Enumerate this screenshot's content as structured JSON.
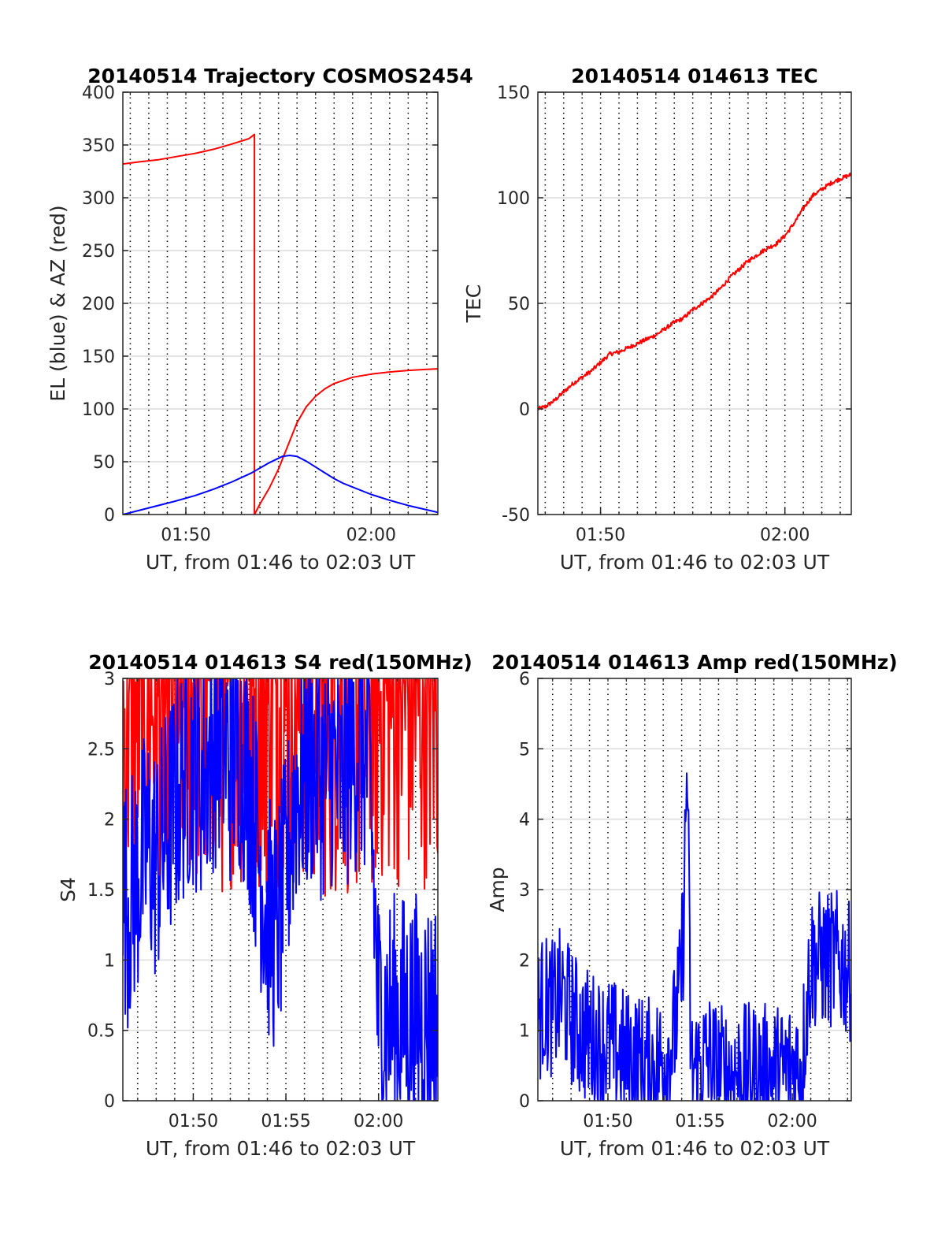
{
  "chart_data": [
    {
      "type": "line",
      "title": "20140514 Trajectory COSMOS2454",
      "xlabel": "UT, from 01:46 to 02:03 UT",
      "ylabel": "EL (blue) & AZ (red)",
      "x_unit": "minutes after 01:46 UT",
      "xlim": [
        0.6,
        17.6
      ],
      "ylim": [
        0,
        400
      ],
      "x_ticks": [
        4,
        14
      ],
      "x_tick_labels": [
        "01:50",
        "02:00"
      ],
      "y_ticks": [
        0,
        50,
        100,
        150,
        200,
        250,
        300,
        350,
        400
      ],
      "y_tick_labels": [
        "0",
        "50",
        "100",
        "150",
        "200",
        "250",
        "300",
        "350",
        "400"
      ],
      "grid": true,
      "series": [
        {
          "color": "#ff0000",
          "x": [
            0.6,
            1.5,
            2.5,
            3.5,
            4.5,
            5.5,
            6.5,
            7.4,
            7.7,
            7.7,
            8.0,
            8.5,
            9.0,
            9.5,
            10.0,
            10.5,
            11.0,
            11.5,
            12.0,
            13.0,
            14.0,
            15.0,
            16.0,
            17.0,
            17.6
          ],
          "values": [
            332,
            334,
            336,
            339,
            342,
            346,
            351,
            356,
            360,
            0,
            10,
            25,
            43,
            65,
            87,
            102,
            112,
            119,
            124,
            130,
            133,
            135,
            136.5,
            137.5,
            138
          ]
        },
        {
          "color": "#0000ff",
          "x": [
            0.6,
            1.5,
            2.5,
            3.5,
            4.5,
            5.5,
            6.5,
            7.5,
            8.5,
            9.2,
            9.6,
            10.0,
            10.5,
            11.0,
            11.5,
            12.0,
            12.5,
            13.0,
            14.0,
            15.0,
            16.0,
            17.0,
            17.6
          ],
          "values": [
            0,
            4,
            8.5,
            13,
            18,
            24,
            31,
            39,
            49,
            55,
            56,
            55,
            50.5,
            45,
            39.5,
            34,
            29.5,
            26,
            19,
            13.5,
            8.5,
            4.5,
            2
          ]
        }
      ]
    },
    {
      "type": "line",
      "title": "20140514 014613 TEC",
      "xlabel": "UT, from 01:46 to 02:03 UT",
      "ylabel": "TEC",
      "x_unit": "minutes after 01:46 UT",
      "xlim": [
        0.6,
        17.6
      ],
      "ylim": [
        -50,
        150
      ],
      "x_ticks": [
        4,
        14
      ],
      "x_tick_labels": [
        "01:50",
        "02:00"
      ],
      "y_ticks": [
        -50,
        0,
        50,
        100,
        150
      ],
      "y_tick_labels": [
        "-50",
        "0",
        "50",
        "100",
        "150"
      ],
      "grid": true,
      "series": [
        {
          "color": "#ff0000",
          "x": [
            0.6,
            1.0,
            1.5,
            2.0,
            2.5,
            3.0,
            3.5,
            4.0,
            4.5,
            5.0,
            5.5,
            6.0,
            6.5,
            7.0,
            7.5,
            8.0,
            8.5,
            9.0,
            9.5,
            10.0,
            10.5,
            11.0,
            11.5,
            12.0,
            12.5,
            13.0,
            13.5,
            14.0,
            14.5,
            15.0,
            15.5,
            16.0,
            16.5,
            17.0,
            17.6
          ],
          "values": [
            0,
            1,
            4,
            8,
            12,
            15,
            18,
            22,
            26,
            27,
            29,
            31,
            33,
            35,
            38,
            41,
            43,
            47,
            50,
            53,
            57,
            62,
            66,
            70,
            73,
            76,
            78,
            82,
            88,
            95,
            101,
            104,
            107,
            109,
            111
          ],
          "noise": 1.0
        }
      ]
    },
    {
      "type": "line",
      "title": "20140514 014613 S4 red(150MHz)",
      "xlabel": "UT, from 01:46 to 02:03 UT",
      "ylabel": "S4",
      "x_unit": "minutes after 01:46 UT",
      "xlim": [
        0.2,
        17.2
      ],
      "ylim": [
        0,
        3
      ],
      "x_ticks": [
        4,
        9,
        14
      ],
      "x_tick_labels": [
        "01:50",
        "01:55",
        "02:00"
      ],
      "y_ticks": [
        0,
        0.5,
        1,
        1.5,
        2,
        2.5,
        3
      ],
      "y_tick_labels": [
        "0",
        "0.5",
        "1",
        "1.5",
        "2",
        "2.5",
        "3"
      ],
      "grid": true,
      "series": [
        {
          "color": "#ff0000",
          "x": [
            0.2,
            0.5,
            1.0,
            1.5,
            2.0,
            2.5,
            3.0,
            3.5,
            4.0,
            4.5,
            5.0,
            5.5,
            6.0,
            6.5,
            7.0,
            7.5,
            8.0,
            8.5,
            9.0,
            9.5,
            10.0,
            10.5,
            11.0,
            11.5,
            12.0,
            12.5,
            13.0,
            13.5,
            14.0,
            14.5,
            15.0,
            15.5,
            16.0,
            16.5,
            17.2
          ],
          "values": [
            2.6,
            2.7,
            2.8,
            2.9,
            2.9,
            2.8,
            2.8,
            2.9,
            2.9,
            2.8,
            2.9,
            2.8,
            2.9,
            2.9,
            2.8,
            2.9,
            2.8,
            2.9,
            2.8,
            2.9,
            2.9,
            2.9,
            2.8,
            2.8,
            2.9,
            2.8,
            2.8,
            2.8,
            2.9,
            2.9,
            2.9,
            2.9,
            2.9,
            2.9,
            2.9
          ],
          "noise": 1.4
        },
        {
          "color": "#0000ff",
          "x": [
            0.2,
            0.5,
            1.0,
            1.5,
            2.0,
            2.5,
            3.0,
            3.5,
            4.0,
            4.5,
            5.0,
            5.5,
            6.0,
            6.5,
            7.0,
            7.5,
            8.0,
            8.5,
            9.0,
            9.5,
            10.0,
            10.5,
            11.0,
            11.5,
            12.0,
            12.5,
            13.0,
            13.5,
            14.0,
            14.5,
            15.0,
            15.5,
            16.0,
            16.5,
            17.2
          ],
          "values": [
            1.5,
            1.4,
            1.6,
            1.8,
            1.7,
            1.9,
            2.1,
            2.3,
            2.4,
            2.3,
            2.5,
            2.6,
            2.4,
            2.5,
            2.3,
            1.8,
            1.3,
            1.2,
            1.6,
            2.2,
            2.3,
            2.4,
            2.3,
            2.4,
            2.2,
            2.5,
            2.5,
            2.4,
            0.6,
            0.6,
            0.6,
            0.6,
            0.6,
            0.6,
            0.6
          ],
          "noise": 0.9
        }
      ]
    },
    {
      "type": "line",
      "title": "20140514 014613 Amp red(150MHz)",
      "xlabel": "UT, from 01:46 to 02:03 UT",
      "ylabel": "Amp",
      "x_unit": "minutes after 01:46 UT",
      "xlim": [
        0.2,
        17.2
      ],
      "ylim": [
        0,
        6
      ],
      "x_ticks": [
        4,
        9,
        14
      ],
      "x_tick_labels": [
        "01:50",
        "01:55",
        "02:00"
      ],
      "y_ticks": [
        0,
        1,
        2,
        3,
        4,
        5,
        6
      ],
      "y_tick_labels": [
        "0",
        "1",
        "2",
        "3",
        "4",
        "5",
        "6"
      ],
      "grid": true,
      "series": [
        {
          "color": "#0000ff",
          "x": [
            0.2,
            0.5,
            1.0,
            1.5,
            2.0,
            2.5,
            3.0,
            3.5,
            4.0,
            4.5,
            5.0,
            5.5,
            6.0,
            6.5,
            7.0,
            7.5,
            7.9,
            8.1,
            8.3,
            8.5,
            9.0,
            9.5,
            10.0,
            10.5,
            11.0,
            11.5,
            12.0,
            12.5,
            13.0,
            13.5,
            14.0,
            14.5,
            15.0,
            15.5,
            16.0,
            16.5,
            17.2
          ],
          "values": [
            1.2,
            1.4,
            1.3,
            1.5,
            1.2,
            1.0,
            0.9,
            0.8,
            0.8,
            0.7,
            0.6,
            0.6,
            0.5,
            0.5,
            0.6,
            0.8,
            1.5,
            2.5,
            4.9,
            0.4,
            0.5,
            0.6,
            0.4,
            0.4,
            0.4,
            0.4,
            0.4,
            0.4,
            0.4,
            0.4,
            0.5,
            0.5,
            2.0,
            2.0,
            2.0,
            2.0,
            1.8
          ],
          "noise": 1.0
        }
      ]
    }
  ]
}
